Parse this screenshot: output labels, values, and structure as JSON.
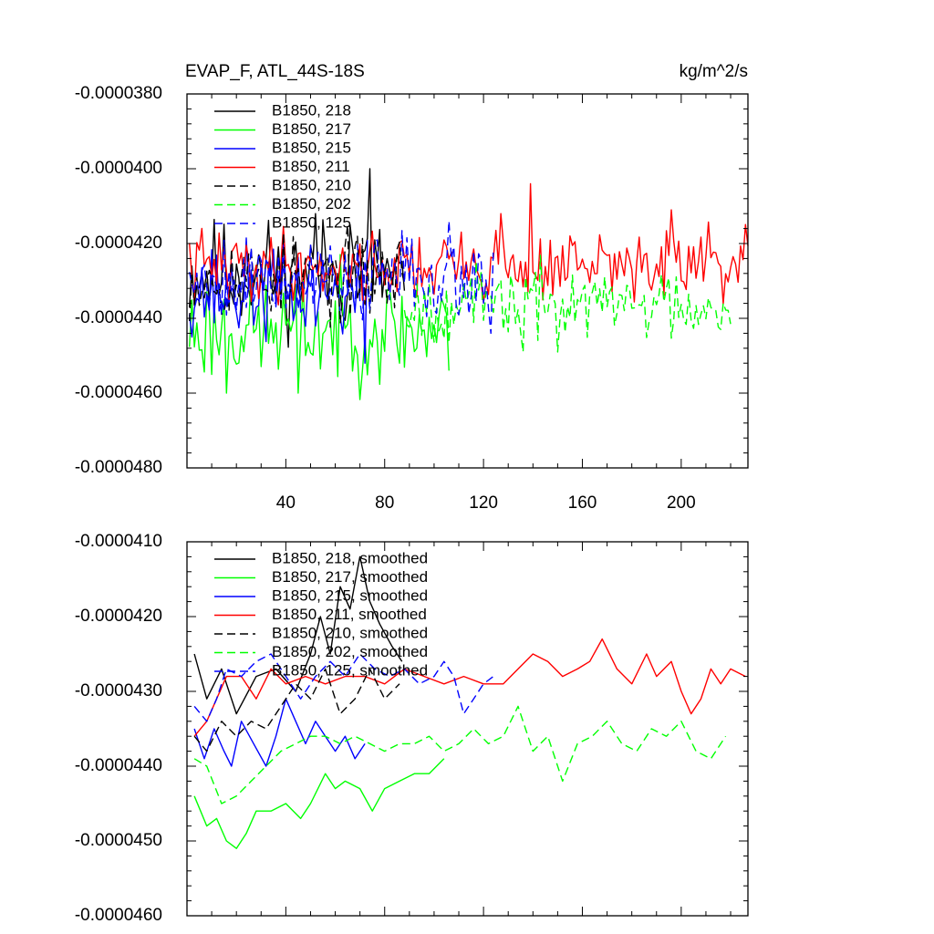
{
  "title_left": "EVAP_F, ATL_44S-18S",
  "title_right": "kg/m^2/s",
  "x_ticks": [
    40,
    80,
    120,
    160,
    200
  ],
  "chart_data": [
    {
      "type": "line",
      "panel": "top",
      "title": "EVAP_F, ATL_44S-18S",
      "units": "kg/m^2/s",
      "xlim": [
        0,
        227
      ],
      "ylim": [
        -4.8e-05,
        -3.8e-05
      ],
      "y_ticks": [
        -3.8e-05,
        -4e-05,
        -4.2e-05,
        -4.4e-05,
        -4.6e-05,
        -4.8e-05
      ],
      "y_tick_labels": [
        "-0.0000380",
        "-0.0000400",
        "-0.0000420",
        "-0.0000440",
        "-0.0000460",
        "-0.0000480"
      ],
      "x_ticks": [
        40,
        80,
        120,
        160,
        200
      ],
      "legend": [
        "B1850, 218",
        "B1850, 217",
        "B1850, 215",
        "B1850, 211",
        "B1850, 210",
        "B1850, 202",
        "B1850, 125"
      ],
      "series": [
        {
          "name": "B1850, 218",
          "color": "#000000",
          "dash": "solid",
          "x0": 1,
          "n": 88,
          "mean": -4.28e-05,
          "amp": 9e-07,
          "seed": 11,
          "spikes": [
            [
              52,
              -4.12e-05
            ],
            [
              74,
              -4e-05
            ],
            [
              66,
              -4.15e-05
            ]
          ]
        },
        {
          "name": "B1850, 217",
          "color": "#00ff00",
          "dash": "solid",
          "x0": 1,
          "n": 106,
          "mean": -4.43e-05,
          "amp": 9e-07,
          "seed": 23,
          "spikes": [
            [
              16,
              -4.6e-05
            ],
            [
              45,
              -4.6e-05
            ],
            [
              106,
              -4.54e-05
            ]
          ]
        },
        {
          "name": "B1850, 215",
          "color": "#0000ff",
          "dash": "solid",
          "x0": 1,
          "n": 73,
          "mean": -4.33e-05,
          "amp": 8e-07,
          "seed": 37,
          "spikes": [
            [
              72,
              -4.52e-05
            ],
            [
              2,
              -4.45e-05
            ]
          ]
        },
        {
          "name": "B1850, 211",
          "color": "#ff0000",
          "dash": "solid",
          "x0": 1,
          "n": 227,
          "mean": -4.26e-05,
          "amp": 6e-07,
          "seed": 41,
          "spikes": [
            [
              139,
              -4.04e-05
            ],
            [
              196,
              -4.11e-05
            ],
            [
              127,
              -4.12e-05
            ]
          ]
        },
        {
          "name": "B1850, 210",
          "color": "#000000",
          "dash": "dashed",
          "x0": 1,
          "n": 88,
          "mean": -4.29e-05,
          "amp": 7e-07,
          "seed": 53,
          "spikes": []
        },
        {
          "name": "B1850, 202",
          "color": "#00ff00",
          "dash": "dashed",
          "x0": 88,
          "n": 133,
          "mean": -4.36e-05,
          "amp": 6e-07,
          "seed": 67,
          "spikes": [
            [
              136,
              -4.49e-05
            ],
            [
              150,
              -4.49e-05
            ]
          ]
        },
        {
          "name": "B1850, 125",
          "color": "#0000ff",
          "dash": "dashed",
          "x0": 1,
          "n": 124,
          "mean": -4.29e-05,
          "amp": 7e-07,
          "seed": 79,
          "spikes": [
            [
              106,
              -4.14e-05
            ],
            [
              123,
              -4.44e-05
            ]
          ]
        }
      ]
    },
    {
      "type": "line",
      "panel": "bottom",
      "xlim": [
        0,
        227
      ],
      "ylim": [
        -4.6e-05,
        -4.1e-05
      ],
      "y_ticks": [
        -4.1e-05,
        -4.2e-05,
        -4.3e-05,
        -4.4e-05,
        -4.5e-05,
        -4.6e-05
      ],
      "y_tick_labels": [
        "-0.0000410",
        "-0.0000420",
        "-0.0000430",
        "-0.0000440",
        "-0.0000450",
        "-0.0000460"
      ],
      "legend": [
        "B1850, 218, smoothed",
        "B1850, 217, smoothed",
        "B1850, 215, smoothed",
        "B1850, 211, smoothed",
        "B1850, 210, smoothed",
        "B1850, 202, smoothed",
        "B1850, 125, smoothed"
      ],
      "series": [
        {
          "name": "B1850, 218, smoothed",
          "color": "#000000",
          "dash": "solid",
          "points": [
            [
              3,
              -4.25e-05
            ],
            [
              8,
              -4.31e-05
            ],
            [
              14,
              -4.27e-05
            ],
            [
              20,
              -4.33e-05
            ],
            [
              28,
              -4.28e-05
            ],
            [
              36,
              -4.27e-05
            ],
            [
              44,
              -4.3e-05
            ],
            [
              50,
              -4.25e-05
            ],
            [
              54,
              -4.2e-05
            ],
            [
              58,
              -4.25e-05
            ],
            [
              62,
              -4.16e-05
            ],
            [
              66,
              -4.19e-05
            ],
            [
              70,
              -4.12e-05
            ],
            [
              74,
              -4.18e-05
            ],
            [
              78,
              -4.21e-05
            ],
            [
              83,
              -4.24e-05
            ],
            [
              87,
              -4.26e-05
            ]
          ]
        },
        {
          "name": "B1850, 217, smoothed",
          "color": "#00ff00",
          "dash": "solid",
          "points": [
            [
              3,
              -4.44e-05
            ],
            [
              8,
              -4.48e-05
            ],
            [
              12,
              -4.47e-05
            ],
            [
              16,
              -4.5e-05
            ],
            [
              20,
              -4.51e-05
            ],
            [
              24,
              -4.49e-05
            ],
            [
              28,
              -4.46e-05
            ],
            [
              34,
              -4.46e-05
            ],
            [
              40,
              -4.45e-05
            ],
            [
              46,
              -4.47e-05
            ],
            [
              50,
              -4.45e-05
            ],
            [
              56,
              -4.41e-05
            ],
            [
              60,
              -4.43e-05
            ],
            [
              64,
              -4.42e-05
            ],
            [
              70,
              -4.43e-05
            ],
            [
              75,
              -4.46e-05
            ],
            [
              80,
              -4.43e-05
            ],
            [
              86,
              -4.42e-05
            ],
            [
              92,
              -4.41e-05
            ],
            [
              98,
              -4.41e-05
            ],
            [
              104,
              -4.39e-05
            ]
          ]
        },
        {
          "name": "B1850, 215, smoothed",
          "color": "#0000ff",
          "dash": "solid",
          "points": [
            [
              3,
              -4.35e-05
            ],
            [
              7,
              -4.39e-05
            ],
            [
              11,
              -4.35e-05
            ],
            [
              15,
              -4.38e-05
            ],
            [
              18,
              -4.4e-05
            ],
            [
              22,
              -4.34e-05
            ],
            [
              27,
              -4.37e-05
            ],
            [
              32,
              -4.4e-05
            ],
            [
              36,
              -4.36e-05
            ],
            [
              40,
              -4.31e-05
            ],
            [
              44,
              -4.34e-05
            ],
            [
              48,
              -4.37e-05
            ],
            [
              52,
              -4.34e-05
            ],
            [
              56,
              -4.36e-05
            ],
            [
              60,
              -4.38e-05
            ],
            [
              64,
              -4.36e-05
            ],
            [
              68,
              -4.39e-05
            ],
            [
              72,
              -4.37e-05
            ]
          ]
        },
        {
          "name": "B1850, 211, smoothed",
          "color": "#ff0000",
          "dash": "solid",
          "points": [
            [
              3,
              -4.36e-05
            ],
            [
              8,
              -4.34e-05
            ],
            [
              12,
              -4.31e-05
            ],
            [
              16,
              -4.28e-05
            ],
            [
              22,
              -4.28e-05
            ],
            [
              28,
              -4.31e-05
            ],
            [
              34,
              -4.27e-05
            ],
            [
              40,
              -4.29e-05
            ],
            [
              48,
              -4.28e-05
            ],
            [
              56,
              -4.29e-05
            ],
            [
              64,
              -4.28e-05
            ],
            [
              72,
              -4.28e-05
            ],
            [
              80,
              -4.29e-05
            ],
            [
              88,
              -4.27e-05
            ],
            [
              96,
              -4.28e-05
            ],
            [
              104,
              -4.29e-05
            ],
            [
              112,
              -4.28e-05
            ],
            [
              120,
              -4.29e-05
            ],
            [
              128,
              -4.29e-05
            ],
            [
              134,
              -4.27e-05
            ],
            [
              140,
              -4.25e-05
            ],
            [
              146,
              -4.26e-05
            ],
            [
              152,
              -4.28e-05
            ],
            [
              158,
              -4.27e-05
            ],
            [
              163,
              -4.26e-05
            ],
            [
              168,
              -4.23e-05
            ],
            [
              174,
              -4.27e-05
            ],
            [
              180,
              -4.29e-05
            ],
            [
              186,
              -4.25e-05
            ],
            [
              190,
              -4.28e-05
            ],
            [
              196,
              -4.26e-05
            ],
            [
              200,
              -4.3e-05
            ],
            [
              204,
              -4.33e-05
            ],
            [
              208,
              -4.31e-05
            ],
            [
              212,
              -4.27e-05
            ],
            [
              216,
              -4.29e-05
            ],
            [
              220,
              -4.27e-05
            ],
            [
              226,
              -4.28e-05
            ]
          ]
        },
        {
          "name": "B1850, 210, smoothed",
          "color": "#000000",
          "dash": "dashed",
          "points": [
            [
              3,
              -4.36e-05
            ],
            [
              8,
              -4.38e-05
            ],
            [
              14,
              -4.34e-05
            ],
            [
              20,
              -4.36e-05
            ],
            [
              26,
              -4.34e-05
            ],
            [
              32,
              -4.35e-05
            ],
            [
              38,
              -4.32e-05
            ],
            [
              44,
              -4.29e-05
            ],
            [
              50,
              -4.31e-05
            ],
            [
              56,
              -4.27e-05
            ],
            [
              62,
              -4.33e-05
            ],
            [
              68,
              -4.31e-05
            ],
            [
              74,
              -4.27e-05
            ],
            [
              80,
              -4.31e-05
            ],
            [
              86,
              -4.29e-05
            ]
          ]
        },
        {
          "name": "B1850, 202, smoothed",
          "color": "#00ff00",
          "dash": "dashed",
          "points": [
            [
              3,
              -4.39e-05
            ],
            [
              8,
              -4.4e-05
            ],
            [
              14,
              -4.45e-05
            ],
            [
              20,
              -4.44e-05
            ],
            [
              26,
              -4.42e-05
            ],
            [
              32,
              -4.4e-05
            ],
            [
              38,
              -4.38e-05
            ],
            [
              44,
              -4.37e-05
            ],
            [
              50,
              -4.36e-05
            ],
            [
              56,
              -4.36e-05
            ],
            [
              62,
              -4.37e-05
            ],
            [
              68,
              -4.36e-05
            ],
            [
              74,
              -4.37e-05
            ],
            [
              80,
              -4.38e-05
            ],
            [
              86,
              -4.37e-05
            ],
            [
              92,
              -4.37e-05
            ],
            [
              98,
              -4.36e-05
            ],
            [
              104,
              -4.38e-05
            ],
            [
              110,
              -4.37e-05
            ],
            [
              116,
              -4.35e-05
            ],
            [
              122,
              -4.37e-05
            ],
            [
              128,
              -4.36e-05
            ],
            [
              134,
              -4.32e-05
            ],
            [
              140,
              -4.38e-05
            ],
            [
              146,
              -4.36e-05
            ],
            [
              152,
              -4.42e-05
            ],
            [
              158,
              -4.37e-05
            ],
            [
              164,
              -4.36e-05
            ],
            [
              170,
              -4.34e-05
            ],
            [
              176,
              -4.37e-05
            ],
            [
              182,
              -4.38e-05
            ],
            [
              188,
              -4.35e-05
            ],
            [
              194,
              -4.36e-05
            ],
            [
              200,
              -4.34e-05
            ],
            [
              206,
              -4.38e-05
            ],
            [
              212,
              -4.39e-05
            ],
            [
              218,
              -4.36e-05
            ]
          ]
        },
        {
          "name": "B1850, 125, smoothed",
          "color": "#0000ff",
          "dash": "dashed",
          "points": [
            [
              3,
              -4.32e-05
            ],
            [
              8,
              -4.34e-05
            ],
            [
              12,
              -4.31e-05
            ],
            [
              16,
              -4.27e-05
            ],
            [
              22,
              -4.28e-05
            ],
            [
              28,
              -4.26e-05
            ],
            [
              34,
              -4.25e-05
            ],
            [
              40,
              -4.28e-05
            ],
            [
              46,
              -4.31e-05
            ],
            [
              52,
              -4.28e-05
            ],
            [
              58,
              -4.26e-05
            ],
            [
              64,
              -4.28e-05
            ],
            [
              70,
              -4.25e-05
            ],
            [
              76,
              -4.27e-05
            ],
            [
              82,
              -4.28e-05
            ],
            [
              88,
              -4.27e-05
            ],
            [
              94,
              -4.29e-05
            ],
            [
              100,
              -4.28e-05
            ],
            [
              104,
              -4.26e-05
            ],
            [
              108,
              -4.28e-05
            ],
            [
              112,
              -4.33e-05
            ],
            [
              116,
              -4.31e-05
            ],
            [
              120,
              -4.29e-05
            ],
            [
              124,
              -4.28e-05
            ]
          ]
        }
      ]
    }
  ]
}
